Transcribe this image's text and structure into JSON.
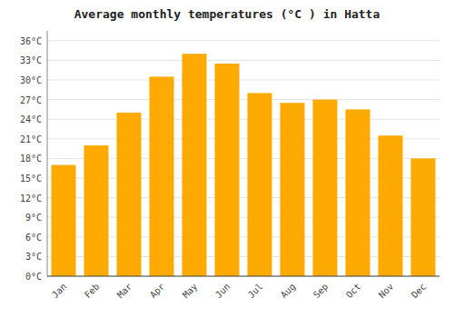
{
  "chart_data": {
    "type": "bar",
    "title": "Average monthly temperatures (°C ) in Hatta",
    "categories": [
      "Jan",
      "Feb",
      "Mar",
      "Apr",
      "May",
      "Jun",
      "Jul",
      "Aug",
      "Sep",
      "Oct",
      "Nov",
      "Dec"
    ],
    "values": [
      17,
      20,
      25,
      30.5,
      34,
      32.5,
      28,
      26.5,
      27,
      25.5,
      21.5,
      18
    ],
    "color": "#FFAA00",
    "ylim": [
      0,
      37.5
    ],
    "yticks": [
      {
        "value": 0,
        "label": "0°C"
      },
      {
        "value": 3,
        "label": "3°C"
      },
      {
        "value": 6,
        "label": "6°C"
      },
      {
        "value": 9,
        "label": "9°C"
      },
      {
        "value": 12,
        "label": "12°C"
      },
      {
        "value": 15,
        "label": "15°C"
      },
      {
        "value": 18,
        "label": "18°C"
      },
      {
        "value": 21,
        "label": "21°C"
      },
      {
        "value": 24,
        "label": "24°C"
      },
      {
        "value": 27,
        "label": "27°C"
      },
      {
        "value": 30,
        "label": "30°C"
      },
      {
        "value": 33,
        "label": "33°C"
      },
      {
        "value": 36,
        "label": "36°C"
      }
    ],
    "grid": true
  }
}
